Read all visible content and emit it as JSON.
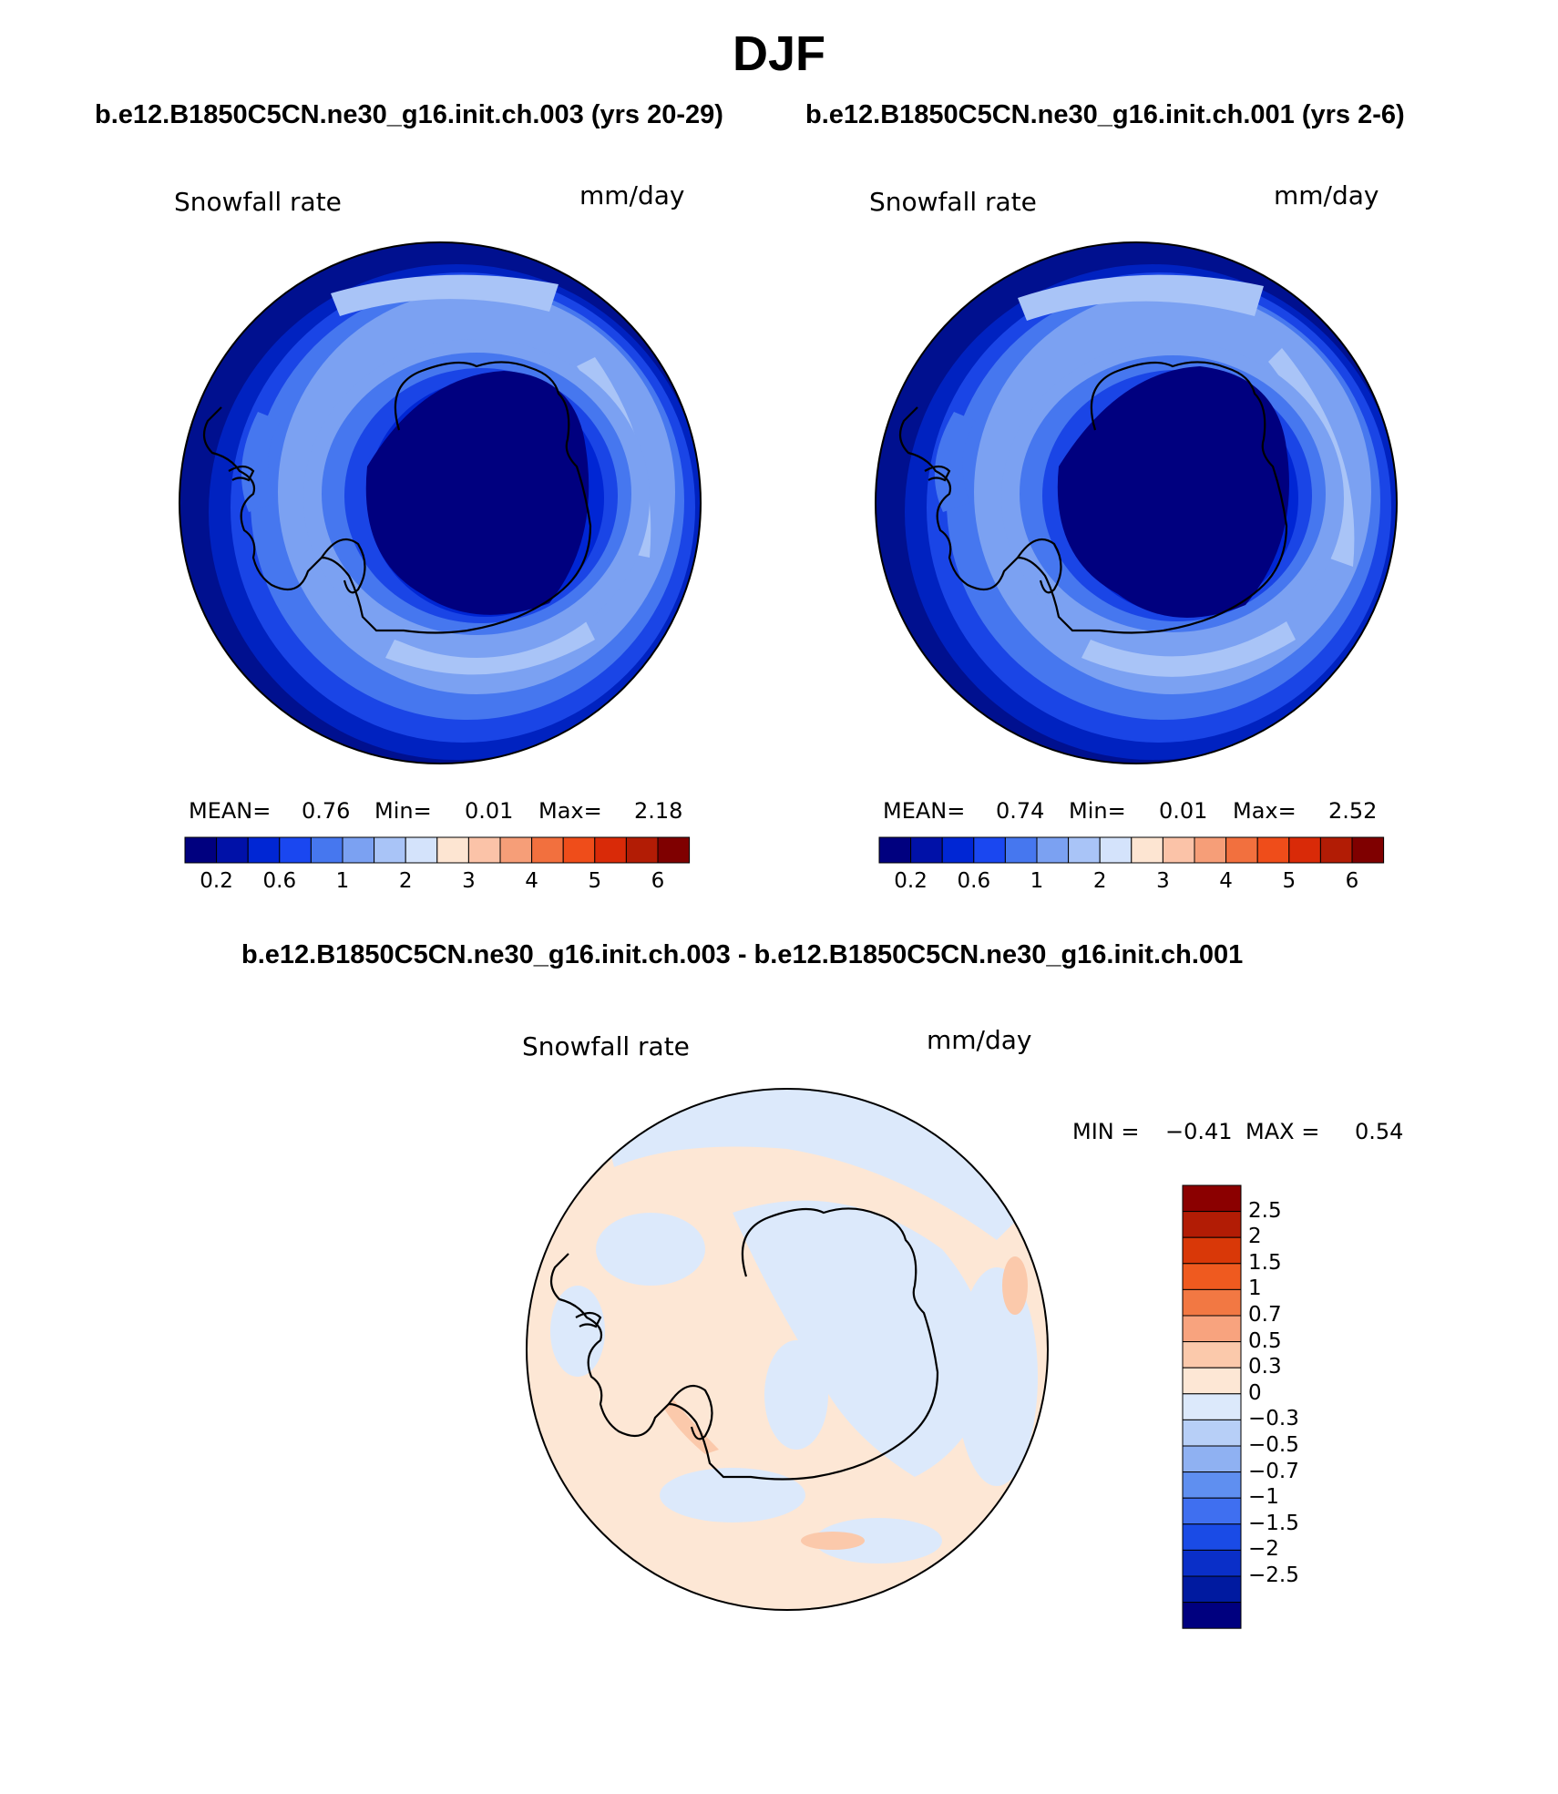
{
  "title": "DJF",
  "panels": {
    "left": {
      "case_title": "b.e12.B1850C5CN.ne30_g16.init.ch.003 (yrs 20-29)",
      "variable": "Snowfall rate",
      "units": "mm/day",
      "stats": {
        "mean_label": "MEAN=",
        "mean": "0.76",
        "min_label": "Min=",
        "min": "0.01",
        "max_label": "Max=",
        "max": "2.18"
      }
    },
    "right": {
      "case_title": "b.e12.B1850C5CN.ne30_g16.init.ch.001 (yrs 2-6)",
      "variable": "Snowfall rate",
      "units": "mm/day",
      "stats": {
        "mean_label": "MEAN=",
        "mean": "0.74",
        "min_label": "Min=",
        "min": "0.01",
        "max_label": "Max=",
        "max": "2.52"
      }
    },
    "diff": {
      "case_title": "b.e12.B1850C5CN.ne30_g16.init.ch.003 - b.e12.B1850C5CN.ne30_g16.init.ch.001",
      "variable": "Snowfall rate",
      "units": "mm/day",
      "stats": {
        "min_label": "MIN =",
        "min": "−0.41",
        "max_label": "MAX =",
        "max": "0.54"
      }
    }
  },
  "colorbar_main": {
    "colors": [
      "#00007f",
      "#0011a8",
      "#0026d4",
      "#1a47f0",
      "#4677ef",
      "#7ba1f2",
      "#a9c4f7",
      "#d4e3fb",
      "#fde5d2",
      "#fbc3a8",
      "#f69e78",
      "#f2703e",
      "#ef4d1a",
      "#d92a08",
      "#b21c05",
      "#7f0000"
    ],
    "tick_labels": [
      "0.2",
      "0.6",
      "1",
      "2",
      "3",
      "4",
      "5",
      "6"
    ]
  },
  "colorbar_diff": {
    "colors_top_to_bottom": [
      "#8b0000",
      "#b21c05",
      "#d93808",
      "#ef5a1f",
      "#f27843",
      "#f8a37e",
      "#fbc9ab",
      "#fde7d5",
      "#dce9fb",
      "#b7cff7",
      "#8fb1f2",
      "#5f8ff0",
      "#3f6ff0",
      "#1a4be6",
      "#0a2fc8",
      "#001aa0",
      "#00007f"
    ],
    "tick_labels": [
      "2.5",
      "2",
      "1.5",
      "1",
      "0.7",
      "0.5",
      "0.3",
      "0",
      "−0.3",
      "−0.5",
      "−0.7",
      "−1",
      "−1.5",
      "−2",
      "−2.5"
    ]
  }
}
